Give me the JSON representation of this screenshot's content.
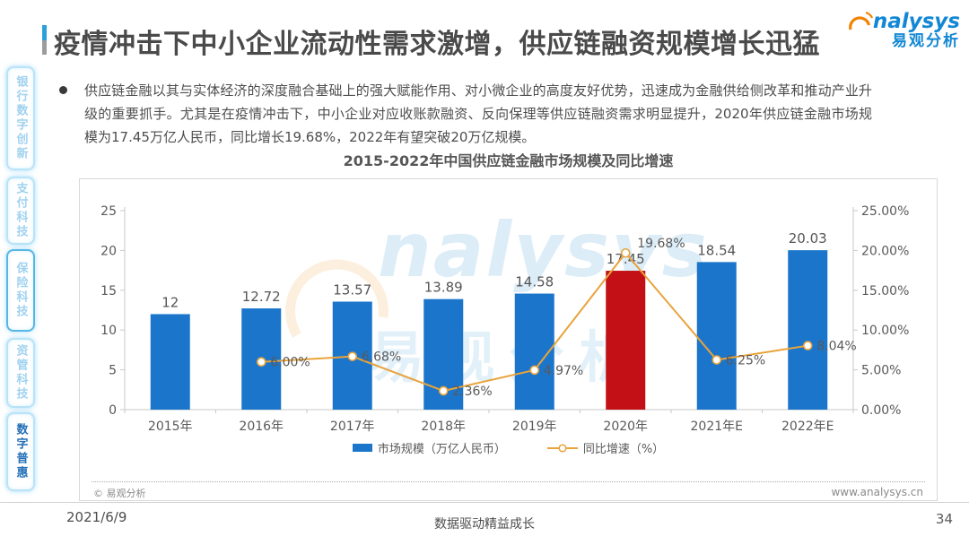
{
  "header": {
    "title": "疫情冲击下中小企业流动性需求激增，供应链融资规模增长迅猛",
    "logo_en": "nalysys",
    "logo_cn": "易观分析"
  },
  "sidebar": {
    "items": [
      {
        "label": "银行数字创新",
        "active": false
      },
      {
        "label": "支付科技",
        "active": false
      },
      {
        "label": "保险科技",
        "active": false
      },
      {
        "label": "资管科技",
        "active": false
      },
      {
        "label": "数字普惠",
        "active": true
      }
    ]
  },
  "intro": {
    "text": "供应链金融以其与实体经济的深度融合基础上的强大赋能作用、对小微企业的高度友好优势，迅速成为金融供给侧改革和推动产业升级的重要抓手。尤其是在疫情冲击下，中小企业对应收账款融资、反向保理等供应链融资需求明显提升，2020年供应链金融市场规模为17.45万亿人民币，同比增长19.68%，2022年有望突破20万亿规模。"
  },
  "chart_data": {
    "type": "bar+line",
    "title": "2015-2022年中国供应链金融市场规模及同比增速",
    "categories": [
      "2015年",
      "2016年",
      "2017年",
      "2018年",
      "2019年",
      "2020年",
      "2021年E",
      "2022年E"
    ],
    "series": [
      {
        "name": "市场规模（万亿人民币）",
        "type": "bar",
        "values": [
          12,
          12.72,
          13.57,
          13.89,
          14.58,
          17.45,
          18.54,
          20.03
        ],
        "color": "#1b76cb",
        "highlight_index": 5,
        "highlight_color": "#c21016"
      },
      {
        "name": "同比增速（%）",
        "type": "line",
        "values": [
          null,
          6.0,
          6.68,
          2.36,
          4.97,
          19.68,
          6.25,
          8.04
        ],
        "color": "#e8a33c"
      }
    ],
    "left_axis": {
      "min": 0,
      "max": 25,
      "ticks": [
        "0",
        "5",
        "10",
        "15",
        "20",
        "25"
      ]
    },
    "right_axis": {
      "min": 0,
      "max": 25,
      "ticks": [
        "0.00%",
        "5.00%",
        "10.00%",
        "15.00%",
        "20.00%",
        "25.00%"
      ]
    },
    "legend": [
      "市场规模（万亿人民币）",
      "同比增速（%）"
    ],
    "legend_position": "bottom",
    "grid": false
  },
  "chart_footer": {
    "copyright": "© 易观分析",
    "site": "www.analysys.cn"
  },
  "watermark": {
    "en": "nalysys",
    "cn": "易观分析"
  },
  "footer": {
    "date": "2021/6/9",
    "slogan": "数据驱动精益成长",
    "page": "34"
  },
  "colors": {
    "bar_blue": "#1b76cb",
    "bar_red": "#c21016",
    "line_orange": "#e8a33c",
    "axis_gray": "#c9c9c9",
    "label_gray": "#595959",
    "accent_blue": "#2ba0db",
    "sidebar_light_blue": "#a0d2ef",
    "sidebar_active_blue": "#2470b8",
    "logo_blue": "#1287d5",
    "logo_orange": "#f08300"
  }
}
